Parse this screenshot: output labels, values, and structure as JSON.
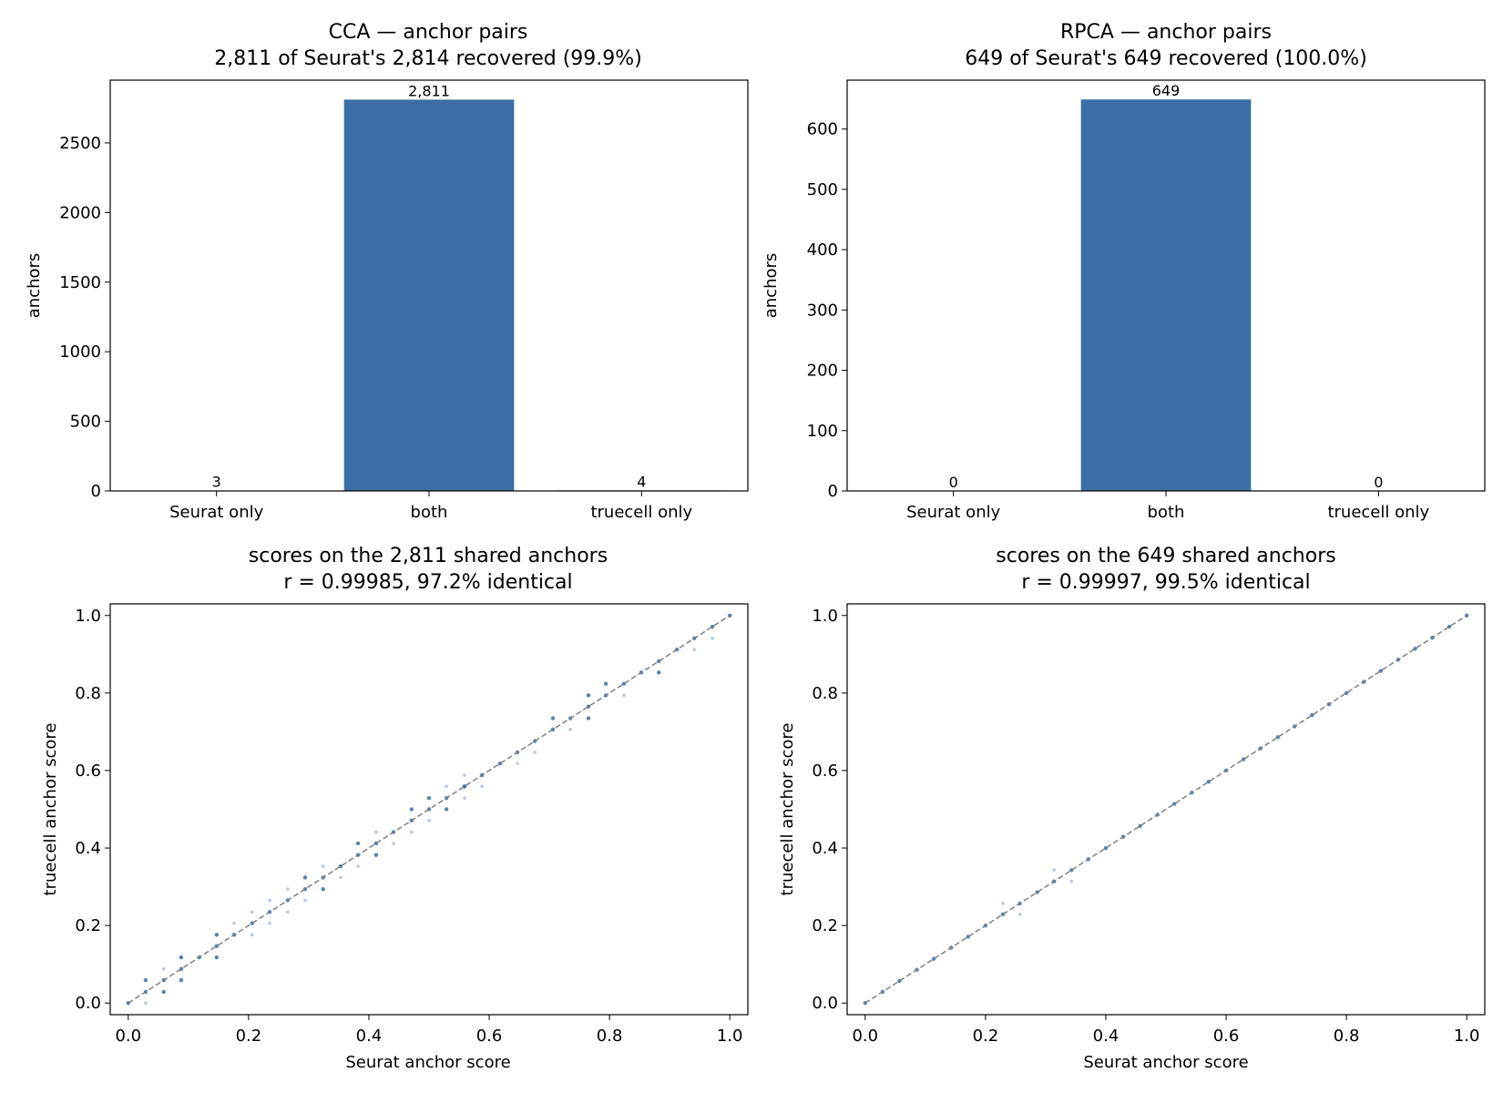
{
  "colors": {
    "bar": "#3b6ea5",
    "point": "#3b6ea5",
    "point_light": "#b8c9de",
    "diagonal": "#808080"
  },
  "chart_data": [
    {
      "type": "bar",
      "title": "CCA — anchor pairs",
      "subtitle": "2,811 of Seurat's 2,814 recovered (99.9%)",
      "categories": [
        "Seurat only",
        "both",
        "truecell only"
      ],
      "values": [
        3,
        2811,
        4
      ],
      "value_labels": [
        "3",
        "2,811",
        "4"
      ],
      "xlabel": "",
      "ylabel": "anchors",
      "ylim": [
        0,
        2951
      ],
      "yticks": [
        0,
        500,
        1000,
        1500,
        2000,
        2500
      ],
      "grid": false
    },
    {
      "type": "bar",
      "title": "RPCA — anchor pairs",
      "subtitle": "649 of Seurat's 649 recovered (100.0%)",
      "categories": [
        "Seurat only",
        "both",
        "truecell only"
      ],
      "values": [
        0,
        649,
        0
      ],
      "value_labels": [
        "0",
        "649",
        "0"
      ],
      "xlabel": "",
      "ylabel": "anchors",
      "ylim": [
        0,
        681
      ],
      "yticks": [
        0,
        100,
        200,
        300,
        400,
        500,
        600
      ],
      "grid": false
    },
    {
      "type": "scatter",
      "title": "scores on the 2,811 shared anchors",
      "subtitle": "r = 0.99985, 97.2% identical",
      "xlabel": "Seurat anchor score",
      "ylabel": "truecell anchor score",
      "xlim": [
        -0.03,
        1.03
      ],
      "ylim": [
        -0.03,
        1.03
      ],
      "xticks": [
        0.0,
        0.2,
        0.4,
        0.6,
        0.8,
        1.0
      ],
      "yticks": [
        0.0,
        0.2,
        0.4,
        0.6,
        0.8,
        1.0
      ],
      "diagonal": true,
      "grid": false,
      "points": [
        [
          0.0,
          0.0
        ],
        [
          0.029,
          0.029
        ],
        [
          0.059,
          0.059
        ],
        [
          0.088,
          0.088
        ],
        [
          0.118,
          0.118
        ],
        [
          0.147,
          0.147
        ],
        [
          0.176,
          0.176
        ],
        [
          0.206,
          0.206
        ],
        [
          0.235,
          0.235
        ],
        [
          0.265,
          0.265
        ],
        [
          0.294,
          0.294
        ],
        [
          0.324,
          0.324
        ],
        [
          0.353,
          0.353
        ],
        [
          0.382,
          0.382
        ],
        [
          0.412,
          0.412
        ],
        [
          0.441,
          0.441
        ],
        [
          0.471,
          0.471
        ],
        [
          0.5,
          0.5
        ],
        [
          0.529,
          0.529
        ],
        [
          0.559,
          0.559
        ],
        [
          0.588,
          0.588
        ],
        [
          0.618,
          0.618
        ],
        [
          0.647,
          0.647
        ],
        [
          0.676,
          0.676
        ],
        [
          0.706,
          0.706
        ],
        [
          0.735,
          0.735
        ],
        [
          0.765,
          0.765
        ],
        [
          0.794,
          0.794
        ],
        [
          0.824,
          0.824
        ],
        [
          0.853,
          0.853
        ],
        [
          0.882,
          0.882
        ],
        [
          0.912,
          0.912
        ],
        [
          0.941,
          0.941
        ],
        [
          0.971,
          0.971
        ],
        [
          1.0,
          1.0
        ],
        [
          0.029,
          0.059
        ],
        [
          0.059,
          0.029
        ],
        [
          0.088,
          0.118
        ],
        [
          0.088,
          0.059
        ],
        [
          0.147,
          0.118
        ],
        [
          0.147,
          0.176
        ],
        [
          0.294,
          0.324
        ],
        [
          0.324,
          0.294
        ],
        [
          0.382,
          0.412
        ],
        [
          0.412,
          0.382
        ],
        [
          0.471,
          0.5
        ],
        [
          0.5,
          0.529
        ],
        [
          0.529,
          0.5
        ],
        [
          0.559,
          0.559
        ],
        [
          0.706,
          0.735
        ],
        [
          0.765,
          0.735
        ],
        [
          0.765,
          0.794
        ],
        [
          0.794,
          0.824
        ],
        [
          0.882,
          0.853
        ]
      ],
      "points_faint": [
        [
          0.029,
          0.0
        ],
        [
          0.059,
          0.088
        ],
        [
          0.088,
          0.118
        ],
        [
          0.176,
          0.206
        ],
        [
          0.206,
          0.176
        ],
        [
          0.206,
          0.235
        ],
        [
          0.235,
          0.206
        ],
        [
          0.235,
          0.265
        ],
        [
          0.265,
          0.235
        ],
        [
          0.265,
          0.294
        ],
        [
          0.294,
          0.265
        ],
        [
          0.324,
          0.353
        ],
        [
          0.353,
          0.324
        ],
        [
          0.382,
          0.353
        ],
        [
          0.412,
          0.441
        ],
        [
          0.441,
          0.412
        ],
        [
          0.471,
          0.441
        ],
        [
          0.5,
          0.471
        ],
        [
          0.529,
          0.559
        ],
        [
          0.559,
          0.529
        ],
        [
          0.559,
          0.588
        ],
        [
          0.588,
          0.559
        ],
        [
          0.647,
          0.618
        ],
        [
          0.676,
          0.647
        ],
        [
          0.735,
          0.706
        ],
        [
          0.824,
          0.794
        ],
        [
          0.941,
          0.912
        ],
        [
          0.971,
          0.941
        ]
      ]
    },
    {
      "type": "scatter",
      "title": "scores on the 649 shared anchors",
      "subtitle": "r = 0.99997, 99.5% identical",
      "xlabel": "Seurat anchor score",
      "ylabel": "truecell anchor score",
      "xlim": [
        -0.03,
        1.03
      ],
      "ylim": [
        -0.03,
        1.03
      ],
      "xticks": [
        0.0,
        0.2,
        0.4,
        0.6,
        0.8,
        1.0
      ],
      "yticks": [
        0.0,
        0.2,
        0.4,
        0.6,
        0.8,
        1.0
      ],
      "diagonal": true,
      "grid": false,
      "points": [
        [
          0.0,
          0.0
        ],
        [
          0.029,
          0.029
        ],
        [
          0.057,
          0.057
        ],
        [
          0.086,
          0.086
        ],
        [
          0.114,
          0.114
        ],
        [
          0.143,
          0.143
        ],
        [
          0.171,
          0.171
        ],
        [
          0.2,
          0.2
        ],
        [
          0.229,
          0.229
        ],
        [
          0.257,
          0.257
        ],
        [
          0.286,
          0.286
        ],
        [
          0.314,
          0.314
        ],
        [
          0.343,
          0.343
        ],
        [
          0.371,
          0.371
        ],
        [
          0.4,
          0.4
        ],
        [
          0.429,
          0.429
        ],
        [
          0.457,
          0.457
        ],
        [
          0.486,
          0.486
        ],
        [
          0.514,
          0.514
        ],
        [
          0.543,
          0.543
        ],
        [
          0.571,
          0.571
        ],
        [
          0.6,
          0.6
        ],
        [
          0.629,
          0.629
        ],
        [
          0.657,
          0.657
        ],
        [
          0.686,
          0.686
        ],
        [
          0.714,
          0.714
        ],
        [
          0.743,
          0.743
        ],
        [
          0.771,
          0.771
        ],
        [
          0.8,
          0.8
        ],
        [
          0.829,
          0.829
        ],
        [
          0.857,
          0.857
        ],
        [
          0.886,
          0.886
        ],
        [
          0.914,
          0.914
        ],
        [
          0.943,
          0.943
        ],
        [
          0.971,
          0.971
        ],
        [
          1.0,
          1.0
        ]
      ],
      "points_faint": [
        [
          0.229,
          0.257
        ],
        [
          0.257,
          0.229
        ],
        [
          0.314,
          0.343
        ],
        [
          0.343,
          0.314
        ]
      ]
    }
  ]
}
